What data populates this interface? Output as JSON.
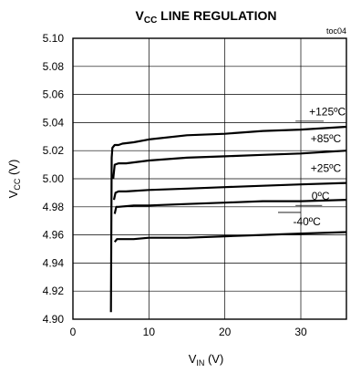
{
  "chart_data": {
    "type": "line",
    "title_main": "V",
    "title_sub": "CC",
    "title_rest": " LINE REGULATION",
    "tag": "toc04",
    "xlabel_main": "V",
    "xlabel_sub": "IN",
    "xlabel_rest": " (V)",
    "ylabel_main": "V",
    "ylabel_sub": "CC",
    "ylabel_rest": " (V)",
    "xlim": [
      0,
      36
    ],
    "ylim": [
      4.9,
      5.1
    ],
    "grid": true,
    "x_ticks": [
      0,
      10,
      20,
      30
    ],
    "y_ticks": [
      4.9,
      4.92,
      4.94,
      4.96,
      4.98,
      5.0,
      5.02,
      5.04,
      5.06,
      5.08,
      5.1
    ],
    "y_tick_labels": [
      "4.90",
      "4.92",
      "4.94",
      "4.96",
      "4.98",
      "5.00",
      "5.02",
      "5.04",
      "5.06",
      "5.08",
      "5.10"
    ],
    "x_tick_labels": [
      "0",
      "10",
      "20",
      "30"
    ],
    "series": [
      {
        "name": "+125ºC",
        "points": [
          [
            5.0,
            4.905
          ],
          [
            5.1,
            5.015
          ],
          [
            5.2,
            5.022
          ],
          [
            5.5,
            5.024
          ],
          [
            6.0,
            5.024
          ],
          [
            6.5,
            5.025
          ],
          [
            8,
            5.026
          ],
          [
            10,
            5.028
          ],
          [
            15,
            5.031
          ],
          [
            20,
            5.032
          ],
          [
            25,
            5.034
          ],
          [
            30,
            5.035
          ],
          [
            36,
            5.037
          ]
        ]
      },
      {
        "name": "+85ºC",
        "points": [
          [
            5.3,
            5.0
          ],
          [
            5.5,
            5.01
          ],
          [
            6.0,
            5.011
          ],
          [
            7,
            5.011
          ],
          [
            10,
            5.013
          ],
          [
            15,
            5.015
          ],
          [
            20,
            5.016
          ],
          [
            25,
            5.017
          ],
          [
            30,
            5.018
          ],
          [
            36,
            5.02
          ]
        ]
      },
      {
        "name": "+25ºC",
        "points": [
          [
            5.4,
            4.985
          ],
          [
            5.6,
            4.99
          ],
          [
            6.0,
            4.991
          ],
          [
            7,
            4.991
          ],
          [
            10,
            4.992
          ],
          [
            15,
            4.993
          ],
          [
            20,
            4.994
          ],
          [
            25,
            4.995
          ],
          [
            30,
            4.996
          ],
          [
            36,
            4.997
          ]
        ]
      },
      {
        "name": "0ºC",
        "points": [
          [
            5.5,
            4.975
          ],
          [
            5.7,
            4.98
          ],
          [
            6.0,
            4.98
          ],
          [
            8,
            4.981
          ],
          [
            10,
            4.981
          ],
          [
            15,
            4.982
          ],
          [
            20,
            4.983
          ],
          [
            25,
            4.984
          ],
          [
            30,
            4.984
          ],
          [
            36,
            4.985
          ]
        ]
      },
      {
        "name": "-40ºC",
        "points": [
          [
            5.5,
            4.955
          ],
          [
            5.8,
            4.957
          ],
          [
            8,
            4.957
          ],
          [
            10,
            4.958
          ],
          [
            15,
            4.958
          ],
          [
            20,
            4.959
          ],
          [
            25,
            4.96
          ],
          [
            30,
            4.961
          ],
          [
            36,
            4.962
          ]
        ]
      }
    ],
    "series_labels": [
      {
        "name": "+125ºC",
        "x": 33.5,
        "y": 5.045,
        "leader_from": [
          29.3,
          5.041
        ],
        "leader_to": [
          33.0,
          5.041
        ]
      },
      {
        "name": "+85ºC",
        "x": 33.3,
        "y": 5.026,
        "leader_from": [
          32.8,
          5.02
        ],
        "leader_to": [
          32.8,
          5.02
        ]
      },
      {
        "name": "+25ºC",
        "x": 33.3,
        "y": 5.005,
        "leader_from": [
          32.8,
          4.999
        ],
        "leader_to": [
          32.8,
          4.999
        ]
      },
      {
        "name": "0ºC",
        "x": 32.6,
        "y": 4.985,
        "leader_from": [
          29.3,
          4.981
        ],
        "leader_to": [
          32.8,
          4.981
        ]
      },
      {
        "name": "-40ºC",
        "x": 30.8,
        "y": 4.967,
        "leader_from": [
          27.0,
          4.976
        ],
        "leader_to": [
          30.0,
          4.976
        ]
      }
    ]
  }
}
